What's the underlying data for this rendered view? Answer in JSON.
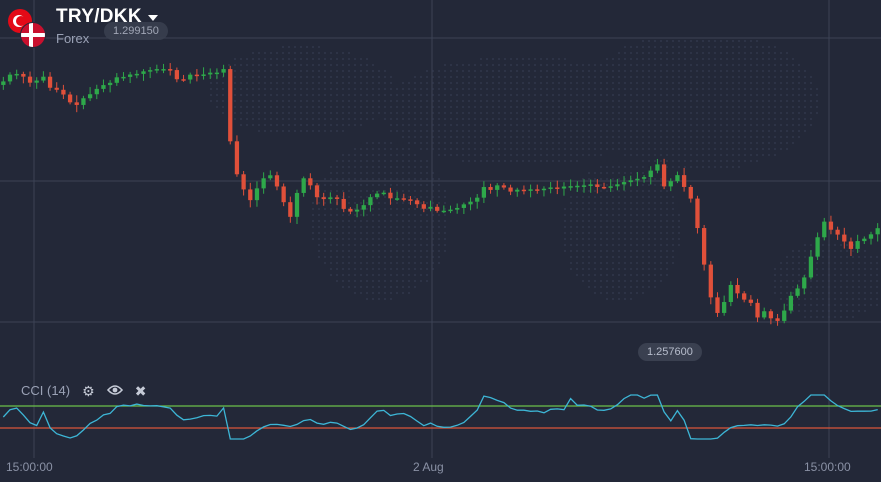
{
  "header": {
    "pair": "TRY/DKK",
    "category": "Forex",
    "base_flag_icon": "turkey-flag-icon",
    "quote_flag_icon": "denmark-flag-icon",
    "dropdown_icon": "caret-down-icon"
  },
  "price_labels": {
    "top": "1.299150",
    "low": "1.257600"
  },
  "indicator": {
    "name": "CCI (14)",
    "settings_icon": "gear-icon",
    "visibility_icon": "eye-icon",
    "remove_icon": "close-icon",
    "upper_level": 100,
    "lower_level": -100
  },
  "time_axis": {
    "labels": [
      "15:00:00",
      "2 Aug",
      "15:00:00"
    ]
  },
  "colors": {
    "background": "#232838",
    "bullish": "#2ea84a",
    "bearish": "#e0503a",
    "cci_line": "#3db6d6",
    "cci_upper": "#6cc04a",
    "cci_lower": "#d9553a"
  },
  "chart_data": {
    "type": "candlestick",
    "price_range": [
      1.2555,
      1.3012
    ],
    "closes": [
      1.2922,
      1.29316,
      1.29326,
      1.29288,
      1.29202,
      1.29232,
      1.29287,
      1.2913,
      1.29101,
      1.29034,
      1.28923,
      1.28886,
      1.28981,
      1.29038,
      1.29114,
      1.29168,
      1.292,
      1.29278,
      1.29284,
      1.29318,
      1.29327,
      1.29363,
      1.2938,
      1.29395,
      1.29395,
      1.29381,
      1.29251,
      1.29247,
      1.29316,
      1.29297,
      1.29319,
      1.29344,
      1.29345,
      1.29395,
      1.2837,
      1.27902,
      1.27687,
      1.27535,
      1.27702,
      1.27845,
      1.27888,
      1.27729,
      1.27506,
      1.27298,
      1.27637,
      1.27845,
      1.27745,
      1.27577,
      1.2755,
      1.27574,
      1.27552,
      1.27411,
      1.27373,
      1.274,
      1.27464,
      1.27577,
      1.27628,
      1.27641,
      1.27561,
      1.27561,
      1.27546,
      1.27532,
      1.27477,
      1.27413,
      1.2744,
      1.27383,
      1.27385,
      1.274,
      1.27424,
      1.27475,
      1.27513,
      1.2757,
      1.27721,
      1.2768,
      1.27745,
      1.27714,
      1.27656,
      1.27683,
      1.27672,
      1.27688,
      1.27685,
      1.27697,
      1.27715,
      1.277,
      1.27728,
      1.27733,
      1.27739,
      1.27744,
      1.27758,
      1.27722,
      1.27721,
      1.27731,
      1.27759,
      1.27791,
      1.27817,
      1.27838,
      1.27862,
      1.27954,
      1.28042,
      1.2773,
      1.27804,
      1.2789,
      1.27722,
      1.27557,
      1.27139,
      1.2662,
      1.26155,
      1.25934,
      1.26089,
      1.26331,
      1.26212,
      1.26123,
      1.26077,
      1.2587,
      1.25958,
      1.25858,
      1.25821,
      1.25968,
      1.26177,
      1.26282,
      1.26438,
      1.26733,
      1.27008,
      1.2723,
      1.27115,
      1.27046,
      1.26948,
      1.26843,
      1.26954,
      1.26988,
      1.2705,
      1.27137
    ]
  }
}
